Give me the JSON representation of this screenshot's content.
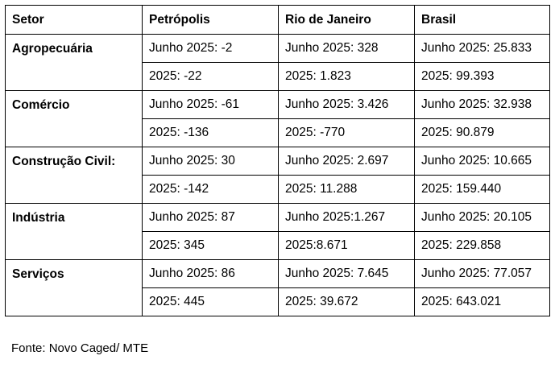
{
  "table": {
    "headers": [
      "Setor",
      "Petrópolis",
      "Rio de Janeiro",
      "Brasil"
    ],
    "sectors": [
      {
        "name": "Agropecuária",
        "rows": [
          [
            "Junho 2025: -2",
            "Junho 2025: 328",
            "Junho 2025: 25.833"
          ],
          [
            "2025: -22",
            "2025: 1.823",
            "2025: 99.393"
          ]
        ]
      },
      {
        "name": "Comércio",
        "rows": [
          [
            "Junho 2025: -61",
            "Junho 2025: 3.426",
            "Junho 2025: 32.938"
          ],
          [
            "2025: -136",
            "2025: -770",
            "2025: 90.879"
          ]
        ]
      },
      {
        "name": "Construção Civil:",
        "rows": [
          [
            "Junho 2025: 30",
            "Junho 2025: 2.697",
            "Junho 2025: 10.665"
          ],
          [
            "2025: -142",
            "2025: 11.288",
            "2025: 159.440"
          ]
        ]
      },
      {
        "name": "Indústria",
        "rows": [
          [
            "Junho 2025: 87",
            "Junho 2025:1.267",
            "Junho 2025: 20.105"
          ],
          [
            "2025: 345",
            "2025:8.671",
            "2025: 229.858"
          ]
        ]
      },
      {
        "name": "Serviços",
        "rows": [
          [
            "Junho 2025: 86",
            "Junho 2025: 7.645",
            "Junho 2025: 77.057"
          ],
          [
            "2025: 445",
            "2025: 39.672",
            "2025: 643.021"
          ]
        ]
      }
    ]
  },
  "source": "Fonte: Novo Caged/ MTE"
}
